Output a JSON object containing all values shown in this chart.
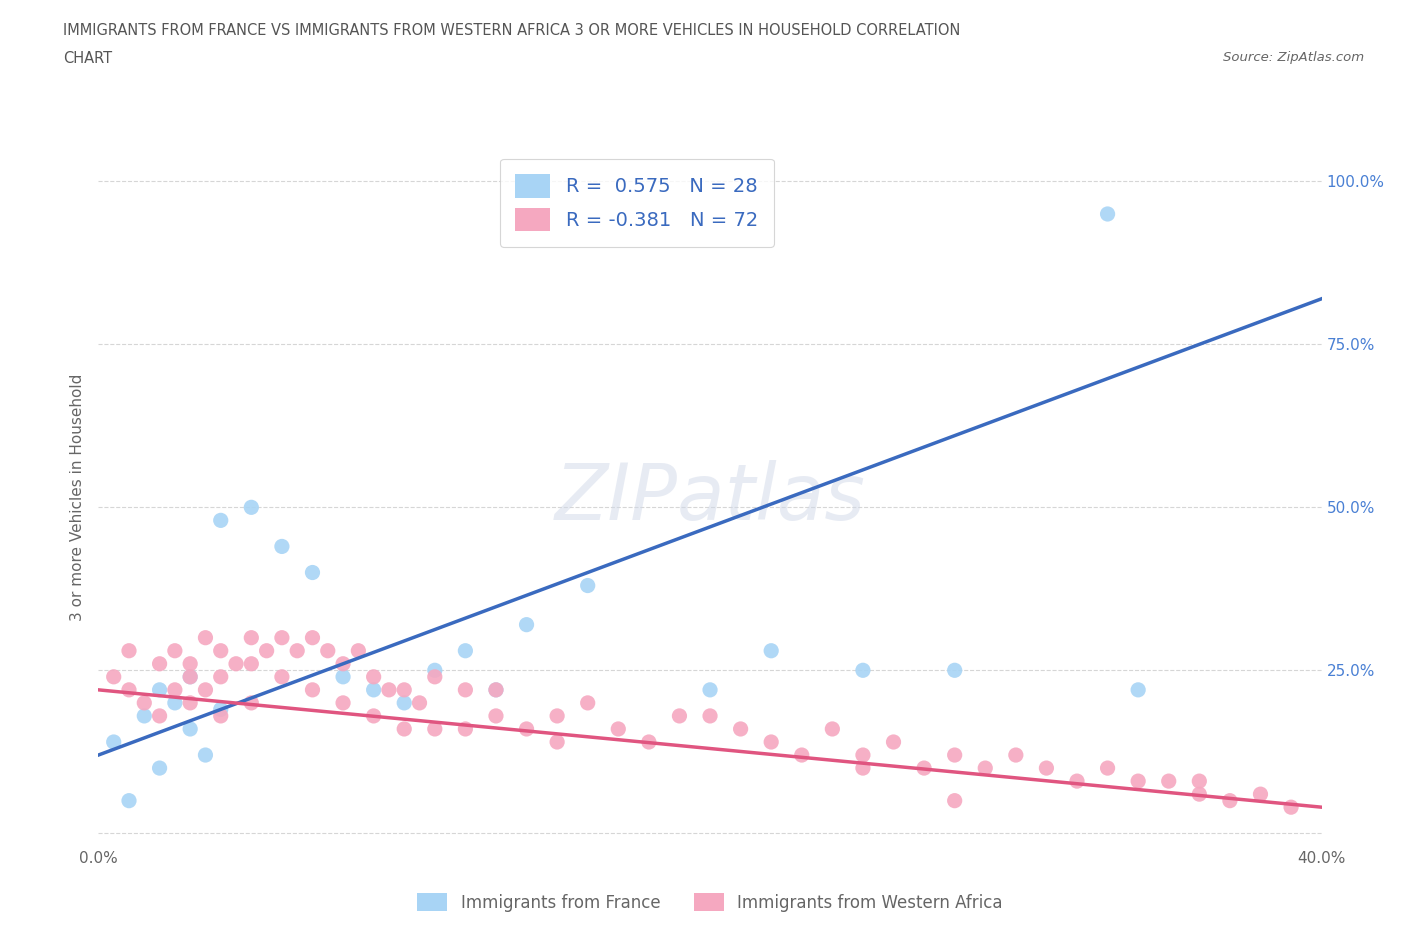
{
  "title_line1": "IMMIGRANTS FROM FRANCE VS IMMIGRANTS FROM WESTERN AFRICA 3 OR MORE VEHICLES IN HOUSEHOLD CORRELATION",
  "title_line2": "CHART",
  "source": "Source: ZipAtlas.com",
  "watermark": "ZIPatlas",
  "blue_R": 0.575,
  "blue_N": 28,
  "pink_R": -0.381,
  "pink_N": 72,
  "blue_color": "#a8d4f5",
  "pink_color": "#f5a8c0",
  "blue_line_color": "#3a6abf",
  "pink_line_color": "#e05580",
  "ylabel": "3 or more Vehicles in Household",
  "xlim": [
    0.0,
    0.4
  ],
  "ylim": [
    -0.02,
    1.05
  ],
  "legend_label_blue": "Immigrants from France",
  "legend_label_pink": "Immigrants from Western Africa",
  "blue_scatter_x": [
    0.005,
    0.01,
    0.015,
    0.02,
    0.02,
    0.025,
    0.03,
    0.03,
    0.035,
    0.04,
    0.04,
    0.05,
    0.06,
    0.07,
    0.08,
    0.09,
    0.1,
    0.11,
    0.12,
    0.13,
    0.14,
    0.16,
    0.2,
    0.22,
    0.25,
    0.28,
    0.33,
    0.34
  ],
  "blue_scatter_y": [
    0.14,
    0.05,
    0.18,
    0.22,
    0.1,
    0.2,
    0.24,
    0.16,
    0.12,
    0.19,
    0.48,
    0.5,
    0.44,
    0.4,
    0.24,
    0.22,
    0.2,
    0.25,
    0.28,
    0.22,
    0.32,
    0.38,
    0.22,
    0.28,
    0.25,
    0.25,
    0.95,
    0.22
  ],
  "pink_scatter_x": [
    0.005,
    0.01,
    0.01,
    0.015,
    0.02,
    0.02,
    0.025,
    0.025,
    0.03,
    0.03,
    0.03,
    0.035,
    0.035,
    0.04,
    0.04,
    0.04,
    0.045,
    0.05,
    0.05,
    0.05,
    0.055,
    0.06,
    0.06,
    0.065,
    0.07,
    0.07,
    0.075,
    0.08,
    0.08,
    0.085,
    0.09,
    0.09,
    0.095,
    0.1,
    0.1,
    0.105,
    0.11,
    0.11,
    0.12,
    0.12,
    0.13,
    0.13,
    0.14,
    0.15,
    0.15,
    0.16,
    0.17,
    0.18,
    0.19,
    0.2,
    0.21,
    0.22,
    0.23,
    0.24,
    0.25,
    0.26,
    0.27,
    0.28,
    0.29,
    0.3,
    0.31,
    0.32,
    0.33,
    0.34,
    0.35,
    0.36,
    0.37,
    0.38,
    0.39,
    0.25,
    0.28,
    0.36
  ],
  "pink_scatter_y": [
    0.24,
    0.22,
    0.28,
    0.2,
    0.26,
    0.18,
    0.28,
    0.22,
    0.26,
    0.24,
    0.2,
    0.3,
    0.22,
    0.28,
    0.24,
    0.18,
    0.26,
    0.3,
    0.26,
    0.2,
    0.28,
    0.3,
    0.24,
    0.28,
    0.3,
    0.22,
    0.28,
    0.26,
    0.2,
    0.28,
    0.24,
    0.18,
    0.22,
    0.22,
    0.16,
    0.2,
    0.24,
    0.16,
    0.22,
    0.16,
    0.18,
    0.22,
    0.16,
    0.18,
    0.14,
    0.2,
    0.16,
    0.14,
    0.18,
    0.18,
    0.16,
    0.14,
    0.12,
    0.16,
    0.12,
    0.14,
    0.1,
    0.12,
    0.1,
    0.12,
    0.1,
    0.08,
    0.1,
    0.08,
    0.08,
    0.06,
    0.05,
    0.06,
    0.04,
    0.1,
    0.05,
    0.08
  ],
  "blue_line_x0": 0.0,
  "blue_line_y0": 0.12,
  "blue_line_x1": 0.4,
  "blue_line_y1": 0.82,
  "pink_line_x0": 0.0,
  "pink_line_y0": 0.22,
  "pink_line_x1": 0.4,
  "pink_line_y1": 0.04,
  "grid_color": "#cccccc",
  "background_color": "#ffffff",
  "title_color": "#555555",
  "axis_label_color": "#666666",
  "ytick_color": "#4a80d4"
}
